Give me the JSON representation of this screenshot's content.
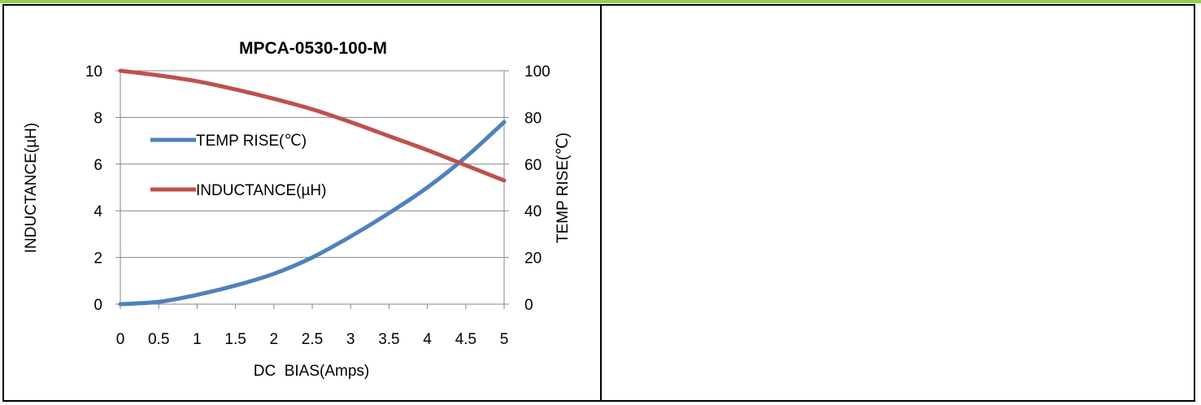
{
  "chart_data": {
    "type": "line",
    "title": "MPCA-0530-100-M",
    "xlabel": "DC  BIAS(Amps)",
    "ylabel": "INDUCTANCE(µH)",
    "y2label": "TEMP RISE(℃)",
    "x_ticks": [
      "0",
      "0.5",
      "1",
      "1.5",
      "2",
      "2.5",
      "3",
      "3.5",
      "4",
      "4.5",
      "5"
    ],
    "y_ticks": [
      "0",
      "2",
      "4",
      "6",
      "8",
      "10"
    ],
    "y2_ticks": [
      "0",
      "20",
      "40",
      "60",
      "80",
      "100"
    ],
    "xlim": [
      0,
      5
    ],
    "ylim": [
      0,
      10
    ],
    "y2lim": [
      0,
      100
    ],
    "grid": "horizontal",
    "legend_position": "left-inside",
    "series": [
      {
        "name": "TEMP RISE(℃)",
        "axis": "right",
        "color": "#4f81bd",
        "x": [
          0,
          0.5,
          1,
          1.5,
          2,
          2.5,
          3,
          3.5,
          4,
          4.5,
          5
        ],
        "values": [
          0,
          1,
          4,
          8,
          13,
          20,
          29,
          39,
          50,
          63,
          78
        ]
      },
      {
        "name": "INDUCTANCE(µH)",
        "axis": "left",
        "color": "#c0504d",
        "x": [
          0,
          0.5,
          1,
          1.5,
          2,
          2.5,
          3,
          3.5,
          4,
          4.5,
          5
        ],
        "values": [
          10,
          9.8,
          9.55,
          9.2,
          8.8,
          8.35,
          7.8,
          7.2,
          6.6,
          5.95,
          5.3
        ]
      }
    ]
  }
}
